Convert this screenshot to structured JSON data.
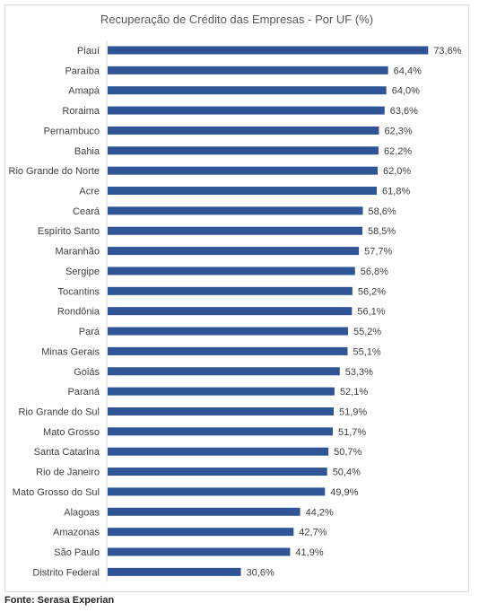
{
  "chart_data": {
    "type": "bar",
    "orientation": "horizontal",
    "title": "Recuperação de Crédito das Empresas - Por UF (%)",
    "xlabel": "",
    "ylabel": "",
    "bar_color": "#2f5597",
    "grid": false,
    "xlim": [
      0,
      80
    ],
    "categories": [
      "Piauí",
      "Paraíba",
      "Amapá",
      "Roraima",
      "Pernambuco",
      "Bahia",
      "Rio Grande do Norte",
      "Acre",
      "Ceará",
      "Espírito Santo",
      "Maranhão",
      "Sergipe",
      "Tocantins",
      "Rondônia",
      "Pará",
      "Minas Gerais",
      "Goiás",
      "Paraná",
      "Rio Grande do Sul",
      "Mato Grosso",
      "Santa Catarina",
      "Rio de Janeiro",
      "Mato Grosso do Sul",
      "Alagoas",
      "Amazonas",
      "São Paulo",
      "Distrito Federal"
    ],
    "values": [
      73.6,
      64.4,
      64.0,
      63.6,
      62.3,
      62.2,
      62.0,
      61.8,
      58.6,
      58.5,
      57.7,
      56.8,
      56.2,
      56.1,
      55.2,
      55.1,
      53.3,
      52.1,
      51.9,
      51.7,
      50.7,
      50.4,
      49.9,
      44.2,
      42.7,
      41.9,
      30.6
    ],
    "labels": [
      "73,6%",
      "64,4%",
      "64,0%",
      "63,6%",
      "62,3%",
      "62,2%",
      "62,0%",
      "61,8%",
      "58,6%",
      "58,5%",
      "57,7%",
      "56,8%",
      "56,2%",
      "56,1%",
      "55,2%",
      "55,1%",
      "53,3%",
      "52,1%",
      "51,9%",
      "51,7%",
      "50,7%",
      "50,4%",
      "49,9%",
      "44,2%",
      "42,7%",
      "41,9%",
      "30,6%"
    ]
  },
  "source": "Fonte: Serasa Experian"
}
